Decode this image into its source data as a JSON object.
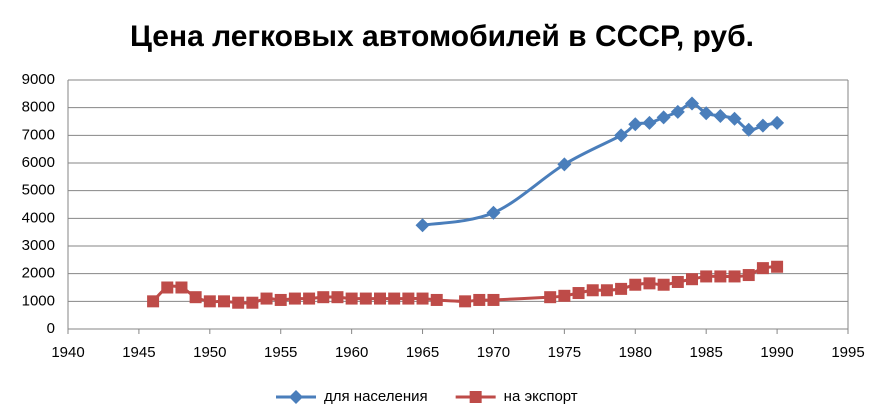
{
  "chart_data": {
    "type": "line",
    "title": "Цена легковых автомобилей в СССР, руб.",
    "xlim": [
      1940,
      1995
    ],
    "xticks": [
      1940,
      1945,
      1950,
      1955,
      1960,
      1965,
      1970,
      1975,
      1980,
      1985,
      1990,
      1995
    ],
    "ylim": [
      0,
      9000
    ],
    "yticks": [
      0,
      1000,
      2000,
      3000,
      4000,
      5000,
      6000,
      7000,
      8000,
      9000
    ],
    "grid": true,
    "legend": "bottom",
    "smooth": true,
    "series": [
      {
        "name": "для населения",
        "color": "#4a7ebb",
        "marker": "diamond",
        "x": [
          1965,
          1970,
          1975,
          1979,
          1980,
          1981,
          1982,
          1983,
          1984,
          1985,
          1986,
          1987,
          1988,
          1989,
          1990
        ],
        "values": [
          3750,
          4200,
          5950,
          7000,
          7400,
          7450,
          7650,
          7850,
          8150,
          7800,
          7700,
          7600,
          7200,
          7350,
          7450
        ]
      },
      {
        "name": "на экспорт",
        "color": "#be4b48",
        "marker": "square",
        "x": [
          1946,
          1947,
          1948,
          1949,
          1950,
          1951,
          1952,
          1953,
          1954,
          1955,
          1956,
          1957,
          1958,
          1959,
          1960,
          1961,
          1962,
          1963,
          1964,
          1965,
          1966,
          1968,
          1969,
          1970,
          1974,
          1975,
          1976,
          1977,
          1978,
          1979,
          1980,
          1981,
          1982,
          1983,
          1984,
          1985,
          1986,
          1987,
          1988,
          1989,
          1990
        ],
        "values": [
          1000,
          1500,
          1500,
          1150,
          1000,
          1000,
          950,
          950,
          1100,
          1050,
          1100,
          1100,
          1150,
          1150,
          1100,
          1100,
          1100,
          1100,
          1100,
          1100,
          1050,
          1000,
          1050,
          1050,
          1150,
          1200,
          1300,
          1400,
          1400,
          1450,
          1600,
          1650,
          1600,
          1700,
          1800,
          1900,
          1900,
          1900,
          1950,
          2200,
          2250
        ]
      }
    ]
  }
}
